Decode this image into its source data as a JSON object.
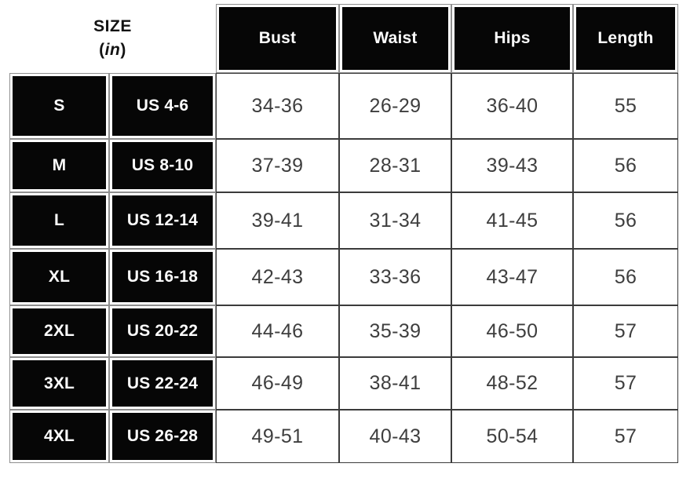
{
  "header": {
    "title": "SIZE",
    "unit_open": "(",
    "unit": "in",
    "unit_close": ")"
  },
  "chart_data": {
    "type": "table",
    "title": "SIZE (in)",
    "unit": "in",
    "columns": [
      "Bust",
      "Waist",
      "Hips",
      "Length"
    ],
    "rows": [
      {
        "size": "S",
        "us_size": "US 4-6",
        "bust": "34-36",
        "waist": "26-29",
        "hips": "36-40",
        "length": "55"
      },
      {
        "size": "M",
        "us_size": "US 8-10",
        "bust": "37-39",
        "waist": "28-31",
        "hips": "39-43",
        "length": "56"
      },
      {
        "size": "L",
        "us_size": "US 12-14",
        "bust": "39-41",
        "waist": "31-34",
        "hips": "41-45",
        "length": "56"
      },
      {
        "size": "XL",
        "us_size": "US 16-18",
        "bust": "42-43",
        "waist": "33-36",
        "hips": "43-47",
        "length": "56"
      },
      {
        "size": "2XL",
        "us_size": "US 20-22",
        "bust": "44-46",
        "waist": "35-39",
        "hips": "46-50",
        "length": "57"
      },
      {
        "size": "3XL",
        "us_size": "US 22-24",
        "bust": "46-49",
        "waist": "38-41",
        "hips": "48-52",
        "length": "57"
      },
      {
        "size": "4XL",
        "us_size": "US 26-28",
        "bust": "49-51",
        "waist": "40-43",
        "hips": "50-54",
        "length": "57"
      }
    ]
  },
  "colors": {
    "cell_black": "#060606",
    "header_text": "#ffffff",
    "data_text": "#3e3e3e",
    "grid_line": "#3b3b3b",
    "background": "#ffffff"
  }
}
